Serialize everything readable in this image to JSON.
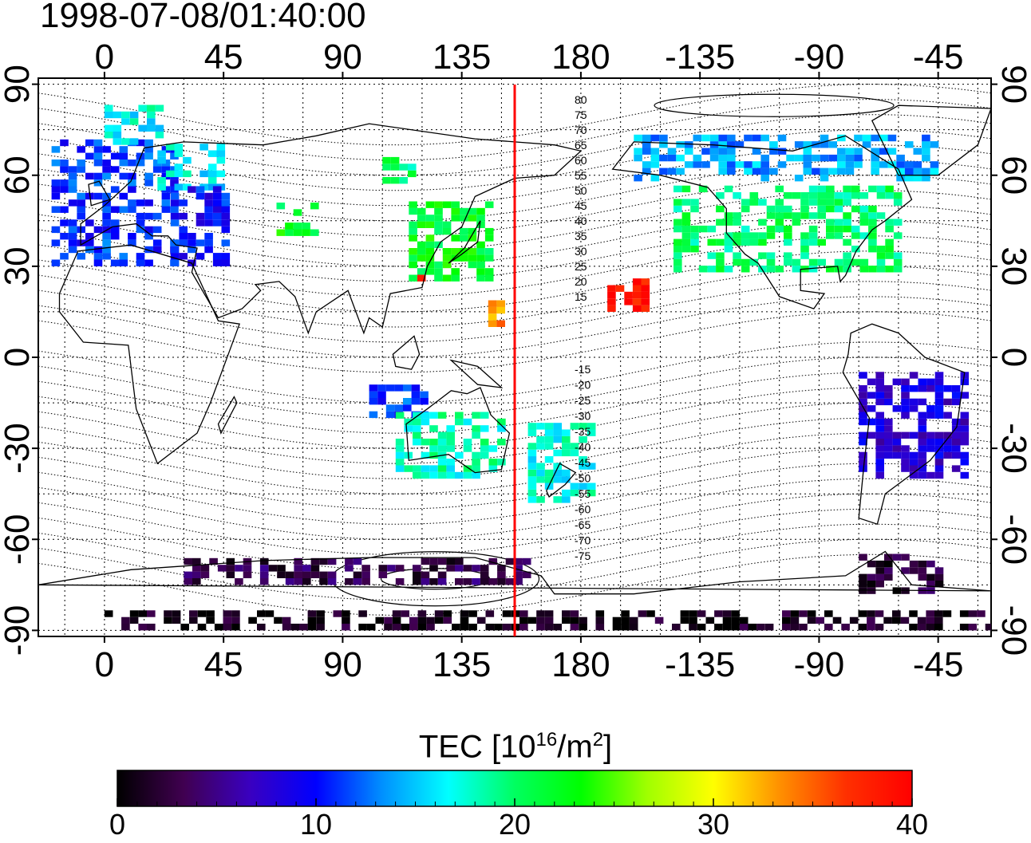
{
  "title": "1998-07-08/01:40:00",
  "axes": {
    "x_ticks": [
      {
        "lon": 0,
        "label": "0"
      },
      {
        "lon": 45,
        "label": "45"
      },
      {
        "lon": 90,
        "label": "90"
      },
      {
        "lon": 135,
        "label": "135"
      },
      {
        "lon": 180,
        "label": "180"
      },
      {
        "lon": 225,
        "label": "-135"
      },
      {
        "lon": 270,
        "label": "-90"
      },
      {
        "lon": 315,
        "label": "-45"
      }
    ],
    "y_ticks": [
      {
        "lat": 90,
        "label": "90"
      },
      {
        "lat": 60,
        "label": "60"
      },
      {
        "lat": 30,
        "label": "30"
      },
      {
        "lat": 0,
        "label": "0"
      },
      {
        "lat": -30,
        "label": "-30"
      },
      {
        "lat": -60,
        "label": "-60"
      },
      {
        "lat": -90,
        "label": "-90"
      }
    ],
    "lon_range": [
      -25,
      335
    ],
    "lat_range": [
      -92,
      92
    ],
    "grid": true
  },
  "marker_line": {
    "lon": 155,
    "color": "#ff0000"
  },
  "contour_labels": {
    "north": [
      "80",
      "75",
      "70",
      "65",
      "60",
      "55",
      "50",
      "45",
      "40",
      "35",
      "30",
      "25",
      "20",
      "15"
    ],
    "south": [
      "-15",
      "-20",
      "-25",
      "-30",
      "-35",
      "-40",
      "-45",
      "-50",
      "-55",
      "-60",
      "-65",
      "-70",
      "-75"
    ]
  },
  "colorbar": {
    "label_main": "TEC  [10",
    "label_exp1": "16",
    "label_mid": "/m",
    "label_exp2": "2",
    "label_end": "]",
    "ticks": [
      "0",
      "10",
      "20",
      "30",
      "40"
    ],
    "range": [
      0,
      40
    ],
    "stops": [
      "#000000",
      "#400050",
      "#3a00c0",
      "#0000ff",
      "#0090ff",
      "#00ffff",
      "#00ff60",
      "#00ff00",
      "#a0ff00",
      "#ffff00",
      "#ff9000",
      "#ff3000",
      "#ff0000"
    ]
  },
  "chart_data": {
    "type": "heatmap",
    "title": "1998-07-08/01:40:00",
    "colorbar_label": "TEC  [10^16/m^2]",
    "value_range": [
      0,
      40
    ],
    "regions": [
      {
        "lon": [
          -20,
          25
        ],
        "lat": [
          30,
          70
        ],
        "value": 11
      },
      {
        "lon": [
          0,
          20
        ],
        "lat": [
          70,
          82
        ],
        "value": 17
      },
      {
        "lon": [
          20,
          45
        ],
        "lat": [
          55,
          70
        ],
        "value": 16
      },
      {
        "lon": [
          25,
          45
        ],
        "lat": [
          30,
          55
        ],
        "value": 10
      },
      {
        "lon": [
          65,
          80
        ],
        "lat": [
          40,
          50
        ],
        "value": 22
      },
      {
        "lon": [
          105,
          115
        ],
        "lat": [
          55,
          65
        ],
        "value": 20
      },
      {
        "lon": [
          115,
          145
        ],
        "lat": [
          25,
          50
        ],
        "value": 22
      },
      {
        "lon": [
          115,
          125
        ],
        "lat": [
          25,
          30
        ],
        "value": 36
      },
      {
        "lon": [
          145,
          150
        ],
        "lat": [
          10,
          18
        ],
        "value": 33
      },
      {
        "lon": [
          190,
          205
        ],
        "lat": [
          15,
          25
        ],
        "value": 39
      },
      {
        "lon": [
          215,
          300
        ],
        "lat": [
          28,
          55
        ],
        "value": 20
      },
      {
        "lon": [
          200,
          315
        ],
        "lat": [
          58,
          72
        ],
        "value": 14
      },
      {
        "lon": [
          100,
          120
        ],
        "lat": [
          -20,
          -10
        ],
        "value": 11
      },
      {
        "lon": [
          110,
          150
        ],
        "lat": [
          -40,
          -20
        ],
        "value": 18
      },
      {
        "lon": [
          160,
          185
        ],
        "lat": [
          -48,
          -22
        ],
        "value": 17
      },
      {
        "lon": [
          285,
          325
        ],
        "lat": [
          -40,
          -5
        ],
        "value": 8
      },
      {
        "lon": [
          0,
          360
        ],
        "lat": [
          -90,
          -85
        ],
        "value": 1
      },
      {
        "lon": [
          30,
          160
        ],
        "lat": [
          -75,
          -68
        ],
        "value": 3
      },
      {
        "lon": [
          285,
          315
        ],
        "lat": [
          -78,
          -65
        ],
        "value": 2
      }
    ]
  }
}
